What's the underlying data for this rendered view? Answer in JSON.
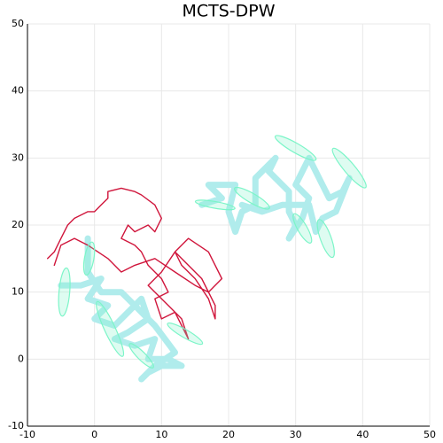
{
  "chart_data": {
    "type": "line",
    "title": "MCTS-DPW",
    "xlim": [
      -10,
      50
    ],
    "ylim": [
      -10,
      50
    ],
    "xticks": [
      -10,
      0,
      10,
      20,
      30,
      40,
      50
    ],
    "yticks": [
      -10,
      0,
      10,
      20,
      30,
      40,
      50
    ],
    "grid": true,
    "series": [
      {
        "color": "#b0ecec",
        "x": [
          -5,
          -2,
          1,
          -1,
          2,
          0,
          3,
          5,
          7,
          8,
          5,
          3,
          6,
          9,
          8,
          11,
          13,
          10,
          8,
          7,
          9,
          12,
          9,
          6,
          4,
          1,
          -1,
          -1,
          -1,
          null,
          16,
          19,
          17,
          21,
          20,
          21,
          22,
          24,
          24,
          27,
          26,
          29,
          29,
          30,
          29,
          31,
          32,
          30,
          32,
          34,
          35,
          37,
          38,
          36,
          34,
          33,
          32,
          28,
          25,
          22
        ],
        "values": [
          11,
          11,
          12,
          9,
          8,
          6,
          5,
          7,
          9,
          6,
          4,
          3,
          2,
          3,
          0,
          0,
          -1,
          -1,
          -2,
          -3,
          -1,
          1,
          5,
          8,
          10,
          10,
          13,
          14,
          18,
          null,
          23,
          24,
          26,
          26,
          22,
          19,
          22,
          23,
          27,
          30,
          28,
          25,
          22,
          20,
          18,
          21,
          24,
          26,
          30,
          26,
          24,
          25,
          27,
          22,
          21,
          19,
          23,
          23,
          22,
          23
        ]
      },
      {
        "color": "#d0163c",
        "x": [
          -7,
          -6,
          -5,
          -4,
          -3,
          -1,
          0,
          1,
          2,
          2,
          4,
          6,
          7,
          9,
          10,
          9,
          8,
          6,
          5,
          4,
          6,
          7,
          8,
          10,
          11,
          9,
          10,
          12,
          14,
          13,
          11,
          9,
          8,
          10,
          12,
          14,
          16,
          18,
          18,
          17,
          15,
          13,
          12,
          14,
          17,
          19,
          17,
          15,
          12,
          9,
          6,
          4,
          2,
          -1,
          -3,
          -5,
          -6
        ],
        "values": [
          15,
          16,
          18,
          20,
          21,
          22,
          22,
          23,
          24,
          25,
          25.5,
          25,
          24.5,
          23,
          21,
          19,
          20,
          19,
          20,
          18,
          17,
          16,
          14,
          12,
          10,
          9,
          6,
          7,
          3,
          6,
          8,
          10,
          11,
          13,
          16,
          14,
          12,
          8,
          6,
          9,
          12,
          14,
          16,
          18,
          16,
          12,
          10,
          11,
          13,
          15,
          14,
          13,
          15,
          17,
          18,
          17,
          14
        ]
      }
    ],
    "ellipse_color": "#7cf5c8",
    "ellipses": [
      {
        "cx": -4.5,
        "cy": 10,
        "rx": 0.8,
        "ry": 3.6,
        "angle": 5
      },
      {
        "cx": -0.8,
        "cy": 15,
        "rx": 0.7,
        "ry": 2.5,
        "angle": 10
      },
      {
        "cx": 2.3,
        "cy": 4.5,
        "rx": 0.8,
        "ry": 4.5,
        "angle": -25
      },
      {
        "cx": 13.5,
        "cy": 3.8,
        "rx": 0.6,
        "ry": 3,
        "angle": -60
      },
      {
        "cx": 7,
        "cy": 0.5,
        "rx": 0.6,
        "ry": 2.5,
        "angle": -45
      },
      {
        "cx": 30,
        "cy": 31.5,
        "rx": 0.7,
        "ry": 3.5,
        "angle": -60
      },
      {
        "cx": 38,
        "cy": 28.5,
        "rx": 0.8,
        "ry": 3.8,
        "angle": -40
      },
      {
        "cx": 34.5,
        "cy": 18,
        "rx": 0.8,
        "ry": 3,
        "angle": -20
      },
      {
        "cx": 31,
        "cy": 19.5,
        "rx": 0.7,
        "ry": 2.5,
        "angle": -30
      },
      {
        "cx": 23.5,
        "cy": 24,
        "rx": 0.7,
        "ry": 3,
        "angle": -60
      },
      {
        "cx": 18,
        "cy": 23,
        "rx": 0.5,
        "ry": 3,
        "angle": -80
      }
    ]
  }
}
